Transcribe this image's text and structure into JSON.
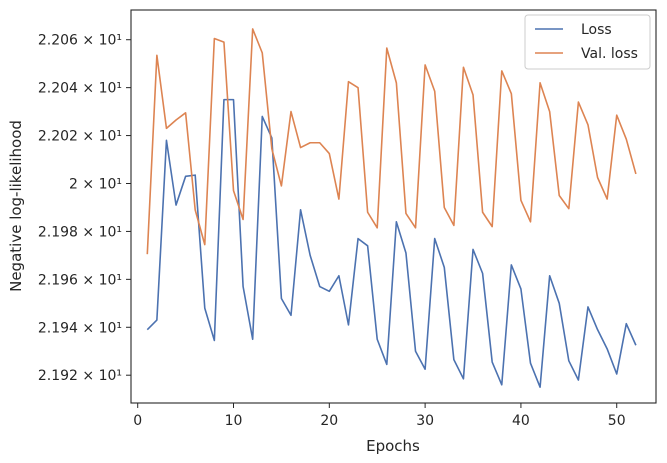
{
  "chart_data": {
    "type": "line",
    "xlabel": "Epochs",
    "ylabel": "Negative log-likelihood",
    "xlim": [
      -0.7,
      54.1
    ],
    "ylim": [
      21.9084,
      22.0724
    ],
    "xticks": [
      0,
      10,
      20,
      30,
      40,
      50
    ],
    "xtick_labels": [
      "0",
      "10",
      "20",
      "30",
      "40",
      "50"
    ],
    "yticks": [
      21.92,
      21.94,
      21.96,
      21.98,
      22.0,
      22.02,
      22.04,
      22.06
    ],
    "ytick_labels": [
      "2.192 × 10¹",
      "2.194 × 10¹",
      "2.196 × 10¹",
      "2.198 × 10¹",
      "2 × 10¹",
      "2.202 × 10¹",
      "2.204 × 10¹",
      "2.206 × 10¹"
    ],
    "legend_position": "top-right",
    "grid": false,
    "x": [
      1,
      2,
      3,
      4,
      5,
      6,
      7,
      8,
      9,
      10,
      11,
      12,
      13,
      14,
      15,
      16,
      17,
      18,
      19,
      20,
      21,
      22,
      23,
      24,
      25,
      26,
      27,
      28,
      29,
      30,
      31,
      32,
      33,
      34,
      35,
      36,
      37,
      38,
      39,
      40,
      41,
      42,
      43,
      44,
      45,
      46,
      47,
      48,
      49,
      50,
      51,
      52
    ],
    "series": [
      {
        "name": "Loss",
        "color": "#4c72b0",
        "values": [
          21.939,
          21.943,
          22.018,
          21.991,
          22.003,
          22.0035,
          21.948,
          21.9345,
          22.035,
          22.035,
          21.957,
          21.935,
          22.028,
          22.019,
          21.952,
          21.945,
          21.989,
          21.97,
          21.957,
          21.955,
          21.9615,
          21.941,
          21.977,
          21.974,
          21.935,
          21.9245,
          21.984,
          21.971,
          21.93,
          21.9225,
          21.977,
          21.965,
          21.9265,
          21.9185,
          21.9725,
          21.9625,
          21.9255,
          21.916,
          21.966,
          21.956,
          21.925,
          21.915,
          21.9615,
          21.95,
          21.926,
          21.918,
          21.9485,
          21.939,
          21.931,
          21.9205,
          21.9415,
          21.9325
        ]
      },
      {
        "name": "Val. loss",
        "color": "#dd8452",
        "values": [
          21.9705,
          22.0535,
          22.023,
          22.0265,
          22.0295,
          21.989,
          21.9745,
          22.0605,
          22.059,
          21.997,
          21.985,
          22.0645,
          22.0545,
          22.0145,
          21.999,
          22.03,
          22.015,
          22.017,
          22.017,
          22.0125,
          21.9935,
          22.0425,
          22.04,
          21.988,
          21.9815,
          22.0565,
          22.042,
          21.9875,
          21.9815,
          22.0495,
          22.0385,
          21.99,
          21.9825,
          22.0485,
          22.037,
          21.988,
          21.982,
          22.047,
          22.0375,
          21.993,
          21.984,
          22.042,
          22.03,
          21.995,
          21.9895,
          22.034,
          22.0245,
          22.0025,
          21.9935,
          22.0285,
          22.0185,
          22.004
        ]
      }
    ]
  }
}
